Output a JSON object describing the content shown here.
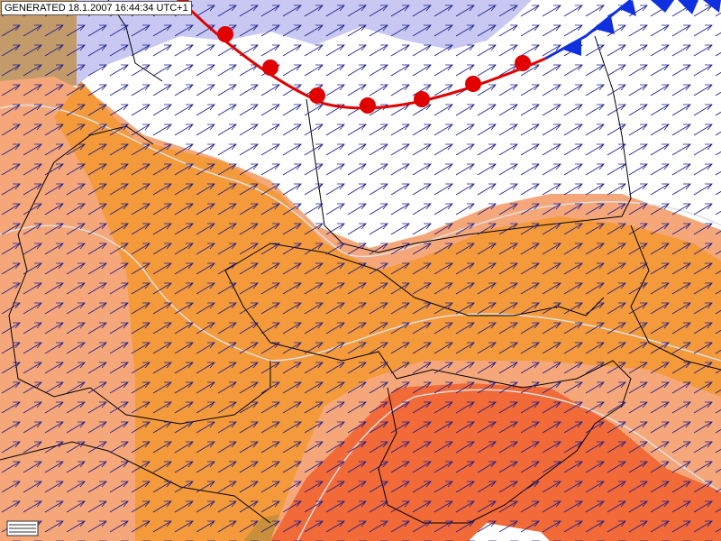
{
  "header": {
    "label": "GENERATED 18.1.2007 16:44:34 UTC+1"
  }
}
